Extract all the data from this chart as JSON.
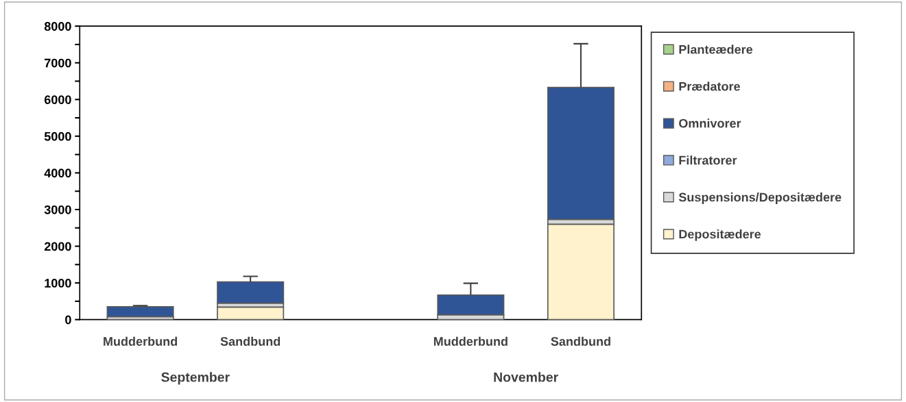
{
  "chart_data": {
    "type": "bar",
    "stacked": true,
    "categories": [
      "Mudderbund",
      "Sandbund",
      null,
      "Mudderbund",
      "Sandbund"
    ],
    "series": [
      {
        "name": "Depositædere",
        "color": "#fff2cc",
        "values": [
          null,
          340,
          null,
          null,
          2600
        ]
      },
      {
        "name": "Suspensions/Depositædere",
        "color": "#d9d9d9",
        "values": [
          80,
          110,
          null,
          130,
          130
        ]
      },
      {
        "name": "Filtratorer",
        "color": "#8faadc",
        "values": [
          0,
          0,
          null,
          0,
          0
        ]
      },
      {
        "name": "Omnivorer",
        "color": "#2f5597",
        "values": [
          270,
          580,
          null,
          540,
          3600
        ],
        "errors": [
          [
            350,
            380
          ],
          [
            1030,
            1180
          ],
          null,
          [
            670,
            990
          ],
          [
            6330,
            7520
          ]
        ]
      },
      {
        "name": "Prædatore",
        "color": "#f4b183",
        "values": [
          0,
          0,
          null,
          0,
          0
        ]
      },
      {
        "name": "Planteædere",
        "color": "#a9d18e",
        "values": [
          0,
          0,
          null,
          0,
          0
        ]
      }
    ],
    "ylim": [
      0,
      8000
    ],
    "yticks": [
      0,
      {
        "value": 500,
        "label": null
      },
      1000,
      {
        "value": 1500,
        "label": null
      },
      2000,
      {
        "value": 2500,
        "label": null
      },
      3000,
      {
        "value": 3500,
        "label": null
      },
      4000,
      {
        "value": 4500,
        "label": null
      },
      5000,
      {
        "value": 5500,
        "label": null
      },
      6000,
      {
        "value": 6500,
        "label": null
      },
      7000,
      {
        "value": 7500,
        "label": null
      },
      8000
    ],
    "annotations": [
      "September",
      "November"
    ],
    "legend": "right",
    "grid": false
  }
}
